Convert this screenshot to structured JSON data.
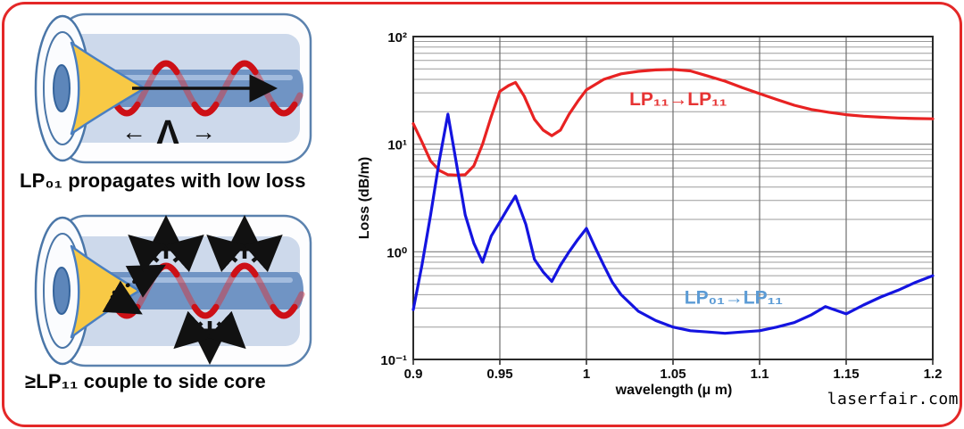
{
  "page": {
    "watermark": "laserfair.com",
    "watermark_color": "#c4009c",
    "border_color": "#e42828"
  },
  "diagram_top": {
    "caption": "LP₀₁ propagates with low loss",
    "period_symbol": "Λ",
    "arrow_left": "←",
    "arrow_right": "→"
  },
  "diagram_bottom": {
    "caption": "≥LP₁₁ couple to side core"
  },
  "chart_data": {
    "type": "line",
    "title": "",
    "xlabel": "wavelength (μ m)",
    "ylabel": "Loss (dB/m)",
    "xlim": [
      0.9,
      1.2
    ],
    "ylim": [
      0.1,
      100
    ],
    "y_scale": "log",
    "grid": true,
    "x_ticks": [
      0.9,
      0.95,
      1.0,
      1.05,
      1.1,
      1.15,
      1.2
    ],
    "x_tick_labels": [
      "0.9",
      "0.95",
      "1",
      "1.05",
      "1.1",
      "1.15",
      "1.2"
    ],
    "y_tick_values": [
      0.1,
      1,
      10,
      100
    ],
    "y_tick_labels": [
      "10⁻¹",
      "10⁰",
      "10¹",
      "10²"
    ],
    "series": [
      {
        "id": "lp11-lp11",
        "name": "LP₁₁→LP₁₁",
        "color": "#e82222",
        "label_color": "#e63333",
        "label_pos": {
          "x": 1.053,
          "y": 23
        },
        "x": [
          0.9,
          0.905,
          0.91,
          0.915,
          0.92,
          0.925,
          0.93,
          0.935,
          0.94,
          0.945,
          0.95,
          0.955,
          0.959,
          0.964,
          0.97,
          0.975,
          0.98,
          0.985,
          0.99,
          0.995,
          1.0,
          1.01,
          1.02,
          1.03,
          1.04,
          1.05,
          1.06,
          1.07,
          1.08,
          1.09,
          1.1,
          1.11,
          1.12,
          1.13,
          1.14,
          1.15,
          1.16,
          1.17,
          1.18,
          1.19,
          1.2
        ],
        "y": [
          15.5,
          10.5,
          7.0,
          5.7,
          5.2,
          5.15,
          5.2,
          6.3,
          10,
          18,
          31,
          35,
          37.5,
          28,
          17,
          13.5,
          12,
          13.5,
          19,
          25,
          32,
          40,
          45,
          47.5,
          49,
          49.5,
          48,
          43,
          38.5,
          33.5,
          29.5,
          26,
          23,
          21,
          19.8,
          18.8,
          18.2,
          17.8,
          17.5,
          17.3,
          17.2
        ]
      },
      {
        "id": "lp01-lp11",
        "name": "LP₀₁→LP₁₁",
        "color": "#1414e0",
        "label_color": "#5b9bd5",
        "label_pos": {
          "x": 1.085,
          "y": 0.33
        },
        "x": [
          0.9,
          0.905,
          0.91,
          0.915,
          0.92,
          0.925,
          0.93,
          0.935,
          0.94,
          0.945,
          0.95,
          0.955,
          0.959,
          0.965,
          0.97,
          0.975,
          0.98,
          0.985,
          0.99,
          0.995,
          1.0,
          1.005,
          1.01,
          1.015,
          1.02,
          1.03,
          1.04,
          1.05,
          1.06,
          1.07,
          1.08,
          1.09,
          1.1,
          1.11,
          1.12,
          1.13,
          1.138,
          1.15,
          1.16,
          1.17,
          1.18,
          1.19,
          1.2
        ],
        "y": [
          0.29,
          0.75,
          2.2,
          7.0,
          19,
          6.5,
          2.2,
          1.2,
          0.8,
          1.4,
          1.9,
          2.6,
          3.3,
          1.8,
          0.85,
          0.65,
          0.53,
          0.75,
          1.0,
          1.3,
          1.65,
          1.1,
          0.75,
          0.52,
          0.4,
          0.28,
          0.23,
          0.2,
          0.185,
          0.18,
          0.175,
          0.18,
          0.185,
          0.2,
          0.22,
          0.26,
          0.31,
          0.265,
          0.32,
          0.38,
          0.44,
          0.52,
          0.6
        ]
      }
    ]
  }
}
